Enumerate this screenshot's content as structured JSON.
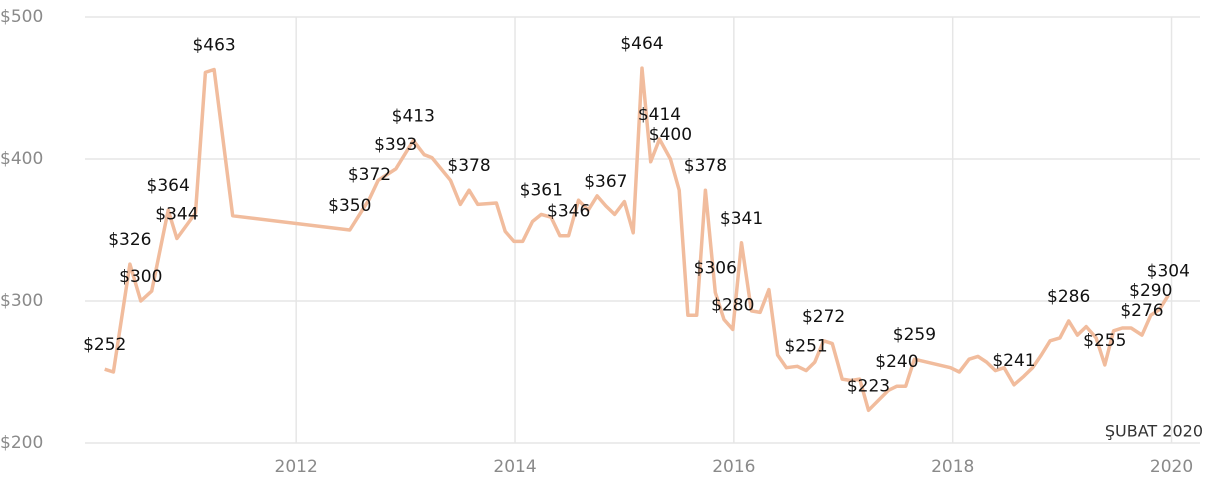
{
  "chart_data": {
    "type": "line",
    "annotation": "ŞUBAT 2020",
    "color": "#f1bc9d",
    "grid": true,
    "xlim": [
      2010.07,
      2020.26
    ],
    "xticks": [
      2012,
      2014,
      2016,
      2018,
      2020
    ],
    "ylim": [
      200,
      500
    ],
    "yticks": [
      {
        "value": 200,
        "label": "$200"
      },
      {
        "value": 300,
        "label": "$300"
      },
      {
        "value": 400,
        "label": "$400"
      },
      {
        "value": 500,
        "label": "$500"
      }
    ],
    "x": [
      2010.25,
      2010.33,
      2010.48,
      2010.58,
      2010.68,
      2010.83,
      2010.91,
      2011.08,
      2011.17,
      2011.25,
      2011.42,
      2012.49,
      2012.58,
      2012.67,
      2012.75,
      2012.91,
      2013.07,
      2013.17,
      2013.24,
      2013.41,
      2013.5,
      2013.58,
      2013.66,
      2013.83,
      2013.91,
      2013.99,
      2014.07,
      2014.16,
      2014.24,
      2014.33,
      2014.41,
      2014.49,
      2014.58,
      2014.67,
      2014.75,
      2014.83,
      2014.91,
      2015.0,
      2015.08,
      2015.16,
      2015.24,
      2015.32,
      2015.42,
      2015.5,
      2015.58,
      2015.66,
      2015.74,
      2015.83,
      2015.91,
      2015.99,
      2016.07,
      2016.16,
      2016.24,
      2016.32,
      2016.4,
      2016.48,
      2016.58,
      2016.66,
      2016.74,
      2016.82,
      2016.9,
      2016.99,
      2017.07,
      2017.15,
      2017.23,
      2017.41,
      2017.49,
      2017.57,
      2017.65,
      2017.98,
      2018.06,
      2018.15,
      2018.23,
      2018.31,
      2018.39,
      2018.47,
      2018.56,
      2018.65,
      2018.73,
      2018.81,
      2018.89,
      2018.98,
      2019.06,
      2019.14,
      2019.22,
      2019.31,
      2019.39,
      2019.47,
      2019.55,
      2019.63,
      2019.73,
      2019.81,
      2019.89,
      2019.97
    ],
    "values": [
      252,
      250,
      326,
      300,
      307,
      364,
      344,
      362,
      461,
      463,
      360,
      350,
      361,
      372,
      385,
      393,
      413,
      403,
      401,
      385,
      368,
      378,
      368,
      369,
      349,
      342,
      342,
      356,
      361,
      359,
      346,
      346,
      371,
      364,
      374,
      367,
      361,
      370,
      348,
      464,
      398,
      414,
      400,
      378,
      290,
      290,
      378,
      306,
      287,
      280,
      341,
      293,
      292,
      308,
      262,
      253,
      254,
      251,
      257,
      272,
      270,
      245,
      244,
      245,
      223,
      237,
      240,
      240,
      259,
      253,
      250,
      259,
      261,
      257,
      251,
      253,
      241,
      247,
      253,
      262,
      272,
      274,
      286,
      276,
      282,
      274,
      255,
      279,
      281,
      281,
      276,
      290,
      294,
      304
    ],
    "value_labels": [
      "$252",
      null,
      "$326",
      "$300",
      null,
      "$364",
      "$344",
      null,
      null,
      "$463",
      null,
      "$350",
      null,
      "$372",
      null,
      "$393",
      "$413",
      null,
      null,
      null,
      null,
      "$378",
      null,
      null,
      null,
      null,
      null,
      null,
      "$361",
      null,
      null,
      "$346",
      null,
      null,
      null,
      "$367",
      null,
      null,
      null,
      "$464",
      null,
      "$414",
      "$400",
      null,
      null,
      null,
      "$378",
      "$306",
      null,
      "$280",
      "$341",
      null,
      null,
      null,
      null,
      null,
      null,
      "$251",
      null,
      "$272",
      null,
      null,
      null,
      null,
      "$223",
      null,
      "$240",
      null,
      "$259",
      null,
      null,
      null,
      null,
      null,
      null,
      null,
      "$241",
      null,
      null,
      null,
      null,
      null,
      "$286",
      null,
      null,
      null,
      "$255",
      null,
      null,
      null,
      "$276",
      "$290",
      null,
      "$304"
    ]
  }
}
